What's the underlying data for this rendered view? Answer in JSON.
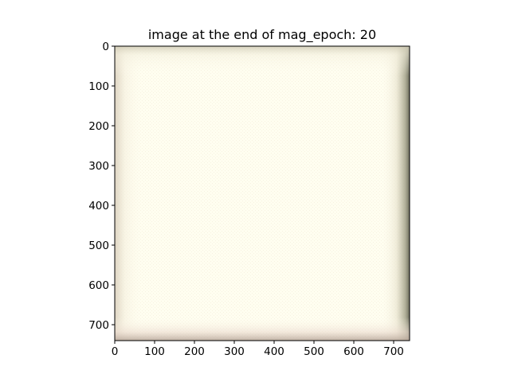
{
  "chart_data": {
    "type": "heatmap",
    "title": "image at the end of mag_epoch: 20",
    "xlabel": "",
    "ylabel": "",
    "xlim": [
      0,
      740
    ],
    "ylim": [
      740,
      0
    ],
    "x_ticks": [
      0,
      100,
      200,
      300,
      400,
      500,
      600,
      700
    ],
    "y_ticks": [
      0,
      100,
      200,
      300,
      400,
      500,
      600,
      700
    ],
    "x_tick_labels": [
      "0",
      "100",
      "200",
      "300",
      "400",
      "500",
      "600",
      "700"
    ],
    "y_tick_labels": [
      "0",
      "100",
      "200",
      "300",
      "400",
      "500",
      "600",
      "700"
    ],
    "grid": false,
    "image_description_colors": {
      "center": "#fffef0",
      "edge_tint": "#e8dcc8",
      "corner_shadow": "#7a7868"
    }
  }
}
